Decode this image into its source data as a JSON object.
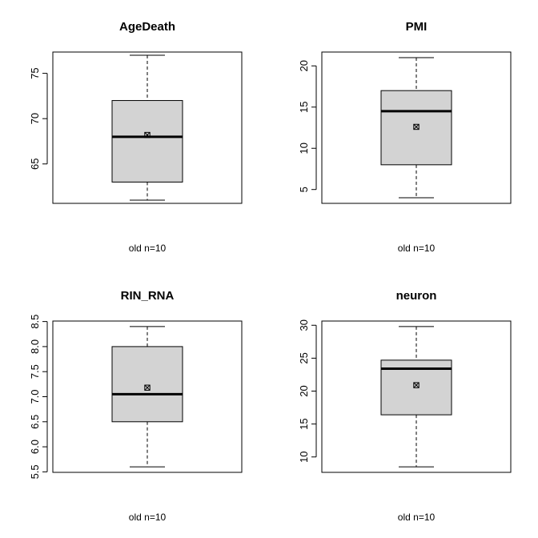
{
  "colors": {
    "box_fill": "#d3d3d3",
    "line": "#000000",
    "background": "#ffffff"
  },
  "mean_marker_icon": "boxed-x-square",
  "chart_data": [
    {
      "type": "boxplot",
      "title": "AgeDeath",
      "xlabel": "old n=10",
      "yticks": [
        "65",
        "70",
        "75"
      ],
      "ylim": [
        60.65,
        77.35
      ],
      "stats": {
        "min": 61,
        "q1": 63,
        "median": 68,
        "q3": 72,
        "max": 77,
        "mean": 68.2
      }
    },
    {
      "type": "boxplot",
      "title": "PMI",
      "xlabel": "old n=10",
      "yticks": [
        "5",
        "10",
        "15",
        "20"
      ],
      "ylim": [
        3.32,
        21.68
      ],
      "stats": {
        "min": 4,
        "q1": 8,
        "median": 14.5,
        "q3": 17,
        "max": 21,
        "mean": 12.6
      }
    },
    {
      "type": "boxplot",
      "title": "RIN_RNA",
      "xlabel": "old n=10",
      "yticks": [
        "5.5",
        "6.0",
        "6.5",
        "7.0",
        "7.5",
        "8.0",
        "8.5"
      ],
      "ylim": [
        5.49,
        8.51
      ],
      "stats": {
        "min": 5.6,
        "q1": 6.5,
        "median": 7.05,
        "q3": 8.0,
        "max": 8.4,
        "mean": 7.18
      }
    },
    {
      "type": "boxplot",
      "title": "neuron",
      "xlabel": "old n=10",
      "yticks": [
        "10",
        "15",
        "20",
        "25",
        "30"
      ],
      "ylim": [
        7.66,
        30.64
      ],
      "stats": {
        "min": 8.5,
        "q1": 16.4,
        "median": 23.4,
        "q3": 24.7,
        "max": 29.8,
        "mean": 20.9
      }
    }
  ]
}
